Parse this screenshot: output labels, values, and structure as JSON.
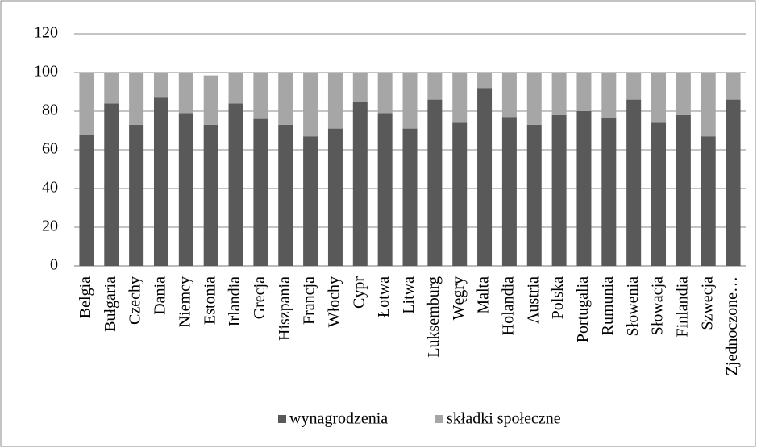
{
  "chart_data": {
    "type": "stacked_bar",
    "categories": [
      "Belgia",
      "Bułgaria",
      "Czechy",
      "Dania",
      "Niemcy",
      "Estonia",
      "Irlandia",
      "Grecja",
      "Hiszpania",
      "Francja",
      "Włochy",
      "Cypr",
      "Łotwa",
      "Litwa",
      "Luksemburg",
      "Węgry",
      "Malta",
      "Holandia",
      "Austria",
      "Polska",
      "Portugalia",
      "Rumunia",
      "Słowenia",
      "Słowacja",
      "Finlandia",
      "Szwecja",
      "Zjednoczone…"
    ],
    "series": [
      {
        "name": "wynagrodzenia",
        "color": "#595959",
        "values": [
          67.5,
          84,
          73,
          87,
          79,
          73,
          84,
          76,
          73,
          67,
          71,
          85,
          79,
          71,
          86,
          74,
          92,
          77,
          73,
          78,
          80,
          76.5,
          86,
          74,
          78,
          67,
          86
        ]
      },
      {
        "name": "składki społeczne",
        "color": "#a6a6a6",
        "values": [
          32.5,
          16,
          27,
          13,
          21,
          25.5,
          16,
          24,
          27,
          33,
          29,
          15,
          21,
          29,
          14,
          26,
          8,
          23,
          27,
          22,
          20,
          23.5,
          14,
          26,
          22,
          33,
          14
        ]
      }
    ],
    "ylim": [
      0,
      120
    ],
    "yticks": [
      0,
      20,
      40,
      60,
      80,
      100,
      120
    ],
    "grid": true,
    "legend": "bottom"
  }
}
